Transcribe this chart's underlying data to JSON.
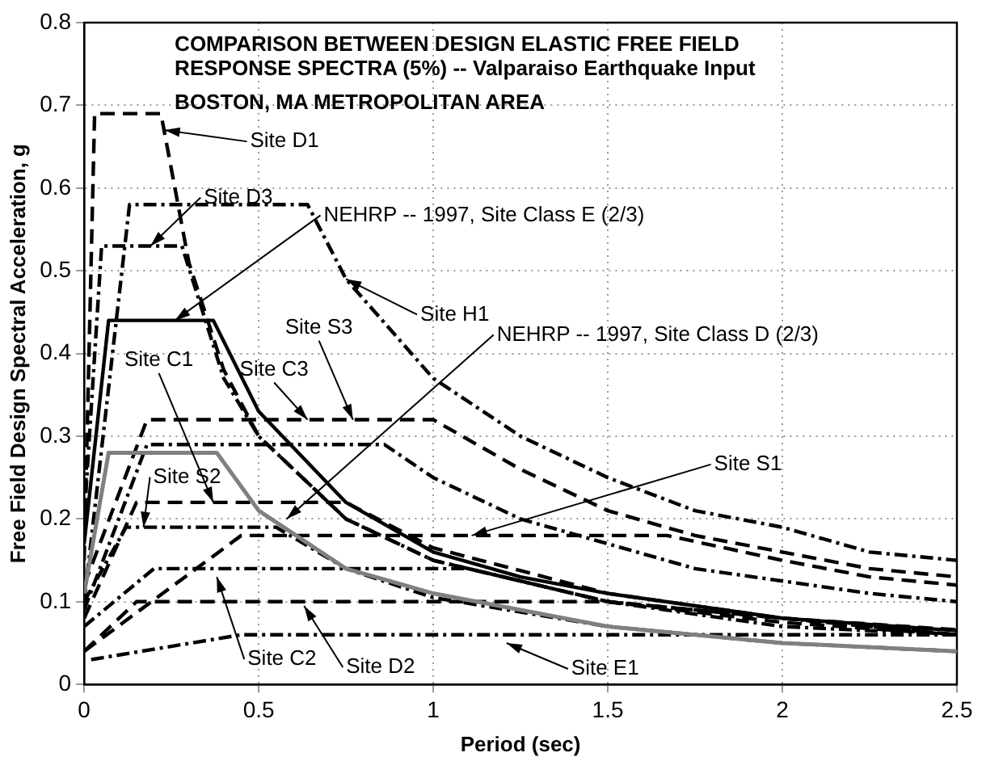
{
  "chart_data": {
    "type": "line",
    "title": "COMPARISON BETWEEN DESIGN ELASTIC FREE FIELD\nRESPONSE SPECTRA (5%) -- Valparaiso Earthquake Input",
    "subtitle": "BOSTON, MA METROPOLITAN AREA",
    "xlabel": "Period (sec)",
    "ylabel": "Free Field Design Spectral Acceleration, g",
    "xlim": [
      0,
      2.5
    ],
    "xticks": [
      0,
      0.5,
      1,
      1.5,
      2,
      2.5
    ],
    "ylim": [
      0,
      0.8
    ],
    "yticks": [
      0,
      0.1,
      0.2,
      0.3,
      0.4,
      0.5,
      0.6,
      0.7,
      0.8
    ],
    "grid": true,
    "legend": false,
    "marker": "none",
    "series": [
      {
        "color": "#000000",
        "line_style": "solid",
        "x": [
          0,
          0.07,
          0.37,
          0.5,
          0.75,
          1,
          1.25,
          1.5,
          2,
          2.5
        ],
        "values": [
          0.17,
          0.44,
          0.44,
          0.33,
          0.22,
          0.16,
          0.13,
          0.11,
          0.08,
          0.065
        ]
      },
      {
        "color": "#808080",
        "line_style": "solid",
        "x": [
          0,
          0.07,
          0.38,
          0.5,
          0.75,
          1,
          1.5,
          2,
          2.5
        ],
        "values": [
          0.11,
          0.28,
          0.28,
          0.21,
          0.14,
          0.11,
          0.07,
          0.05,
          0.04
        ]
      },
      {
        "color": "#000000",
        "line_style": "dashed",
        "x": [
          0,
          0.03,
          0.22,
          0.3,
          0.4,
          0.5,
          0.75,
          1,
          1.5,
          2,
          2.5
        ],
        "values": [
          0.15,
          0.69,
          0.69,
          0.51,
          0.38,
          0.3,
          0.2,
          0.15,
          0.1,
          0.08,
          0.06
        ]
      },
      {
        "color": "#000000",
        "line_style": "dashdot",
        "x": [
          0,
          0.05,
          0.28,
          0.4,
          0.5,
          0.75,
          1,
          1.5,
          2,
          2.5
        ],
        "values": [
          0.2,
          0.53,
          0.53,
          0.37,
          0.3,
          0.2,
          0.15,
          0.1,
          0.07,
          0.06
        ]
      },
      {
        "color": "#000000",
        "line_style": "dashdot",
        "x": [
          0,
          0.13,
          0.64,
          0.75,
          1,
          1.25,
          1.5,
          1.75,
          2,
          2.25,
          2.5
        ],
        "values": [
          0.1,
          0.58,
          0.58,
          0.49,
          0.37,
          0.3,
          0.25,
          0.21,
          0.19,
          0.16,
          0.15
        ]
      },
      {
        "color": "#000000",
        "line_style": "dashed",
        "x": [
          0,
          0.18,
          1,
          1.25,
          1.5,
          1.75,
          2,
          2.25,
          2.5
        ],
        "values": [
          0.12,
          0.32,
          0.32,
          0.26,
          0.21,
          0.18,
          0.16,
          0.14,
          0.13
        ]
      },
      {
        "color": "#000000",
        "line_style": "dashdot",
        "x": [
          0,
          0.18,
          0.86,
          1,
          1.25,
          1.5,
          1.75,
          2,
          2.25,
          2.5
        ],
        "values": [
          0.09,
          0.29,
          0.29,
          0.25,
          0.2,
          0.17,
          0.14,
          0.125,
          0.11,
          0.1
        ]
      },
      {
        "color": "#000000",
        "line_style": "dashed",
        "x": [
          0,
          0.15,
          0.75,
          1,
          1.5,
          2,
          2.5
        ],
        "values": [
          0.08,
          0.22,
          0.22,
          0.165,
          0.11,
          0.08,
          0.066
        ]
      },
      {
        "color": "#000000",
        "line_style": "dashed",
        "x": [
          0,
          0.45,
          1.67,
          2,
          2.25,
          2.5
        ],
        "values": [
          0.04,
          0.18,
          0.18,
          0.15,
          0.13,
          0.12
        ]
      },
      {
        "color": "#000000",
        "line_style": "dashdot",
        "x": [
          0,
          0.12,
          0.55,
          0.75,
          1,
          1.5,
          2,
          2.5
        ],
        "values": [
          0.1,
          0.19,
          0.19,
          0.14,
          0.105,
          0.07,
          0.05,
          0.04
        ]
      },
      {
        "color": "#000000",
        "line_style": "dashdot",
        "x": [
          0,
          0.2,
          1.1,
          1.5,
          2,
          2.5
        ],
        "values": [
          0.07,
          0.14,
          0.14,
          0.1,
          0.08,
          0.06
        ]
      },
      {
        "color": "#000000",
        "line_style": "dashed",
        "x": [
          0,
          0.15,
          1.5,
          2,
          2.5
        ],
        "values": [
          0.04,
          0.1,
          0.1,
          0.075,
          0.06
        ]
      },
      {
        "color": "#000000",
        "line_style": "dashdot",
        "x": [
          0.02,
          0.45,
          2.5
        ],
        "values": [
          0.03,
          0.06,
          0.06
        ]
      }
    ],
    "annotations": [
      {
        "text": "Site D1",
        "x": 0.23,
        "y": 0.67
      },
      {
        "text": "Site D3",
        "x": 0.19,
        "y": 0.53
      },
      {
        "text": "NEHRP -- 1997, Site Class E (2/3)",
        "x": 0.26,
        "y": 0.44
      },
      {
        "text": "Site H1",
        "x": 0.75,
        "y": 0.49
      },
      {
        "text": "Site S3",
        "x": 0.77,
        "y": 0.32
      },
      {
        "text": "Site C3",
        "x": 0.64,
        "y": 0.32
      },
      {
        "text": "NEHRP -- 1997, Site Class D (2/3)",
        "x": 0.58,
        "y": 0.2
      },
      {
        "text": "Site C1",
        "x": 0.37,
        "y": 0.22
      },
      {
        "text": "Site S2",
        "x": 0.17,
        "y": 0.19
      },
      {
        "text": "Site S1",
        "x": 1.11,
        "y": 0.18
      },
      {
        "text": "Site C2",
        "x": 0.38,
        "y": 0.13
      },
      {
        "text": "Site D2",
        "x": 0.63,
        "y": 0.095
      },
      {
        "text": "Site E1",
        "x": 1.21,
        "y": 0.05
      }
    ]
  }
}
